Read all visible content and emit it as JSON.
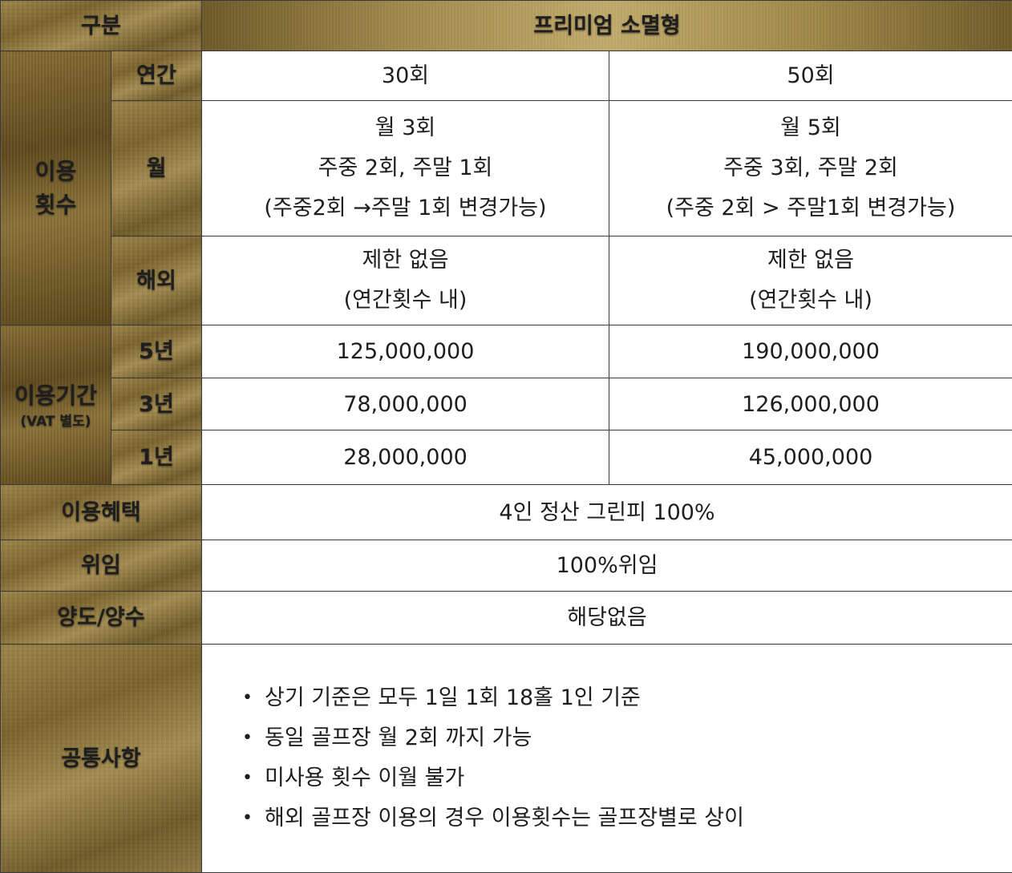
{
  "header": {
    "category_label": "구분",
    "plan_label": "프리미엄 소멸형"
  },
  "usage_count": {
    "label_line1": "이용",
    "label_line2": "횟수",
    "annual": {
      "label": "연간",
      "values": [
        "30회",
        "50회"
      ]
    },
    "monthly": {
      "label": "월",
      "col1": [
        "월 3회",
        "주중 2회, 주말 1회",
        "(주중2회 →주말 1회 변경가능)"
      ],
      "col2": [
        "월 5회",
        "주중 3회, 주말 2회",
        "(주중 2회 > 주말1회 변경가능)"
      ]
    },
    "overseas": {
      "label": "해외",
      "col1": [
        "제한 없음",
        "(연간횟수 내)"
      ],
      "col2": [
        "제한 없음",
        "(연간횟수 내)"
      ]
    }
  },
  "usage_period": {
    "label": "이용기간",
    "sublabel": "(VAT 별도)",
    "rows": [
      {
        "label": "5년",
        "values": [
          "125,000,000",
          "190,000,000"
        ]
      },
      {
        "label": "3년",
        "values": [
          "78,000,000",
          "126,000,000"
        ]
      },
      {
        "label": "1년",
        "values": [
          "28,000,000",
          "45,000,000"
        ]
      }
    ]
  },
  "benefits": {
    "label": "이용혜택",
    "value": "4인 정산 그린피 100%"
  },
  "delegation": {
    "label": "위임",
    "value": "100%위임"
  },
  "transfer": {
    "label": "양도/양수",
    "value": "해당없음"
  },
  "common": {
    "label": "공통사항",
    "bullet": "•",
    "items": [
      "상기 기준은 모두 1일 1회 18홀 1인 기준",
      "동일 골프장 월 2회 까지 가능",
      "미사용 횟수 이월 불가",
      "해외 골프장 이용의 경우 이용횟수는 골프장별로 상이"
    ]
  },
  "colors": {
    "gold": "#8a7238",
    "gold_dark": "#6b5424",
    "border": "#3a3a3a",
    "text": "#1e1e1e"
  }
}
